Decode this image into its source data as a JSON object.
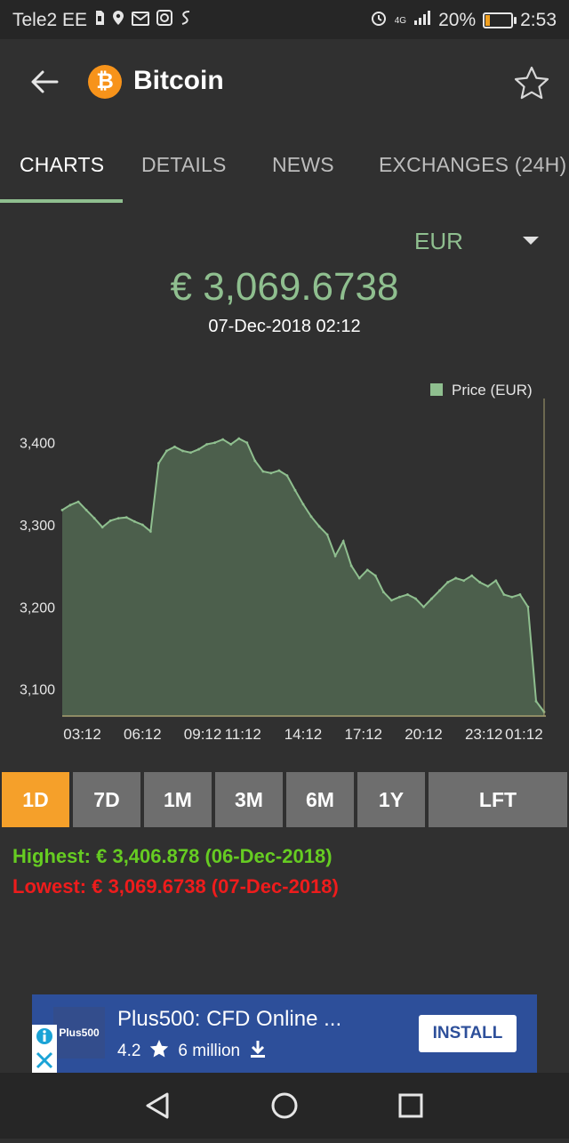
{
  "status_bar": {
    "carrier": "Tele2 EE",
    "network": "4G",
    "battery": "20%",
    "battery_level": 0.2,
    "time": "2:53"
  },
  "app_bar": {
    "title": "Bitcoin",
    "coin_symbol": "₿"
  },
  "tabs": [
    {
      "label": "CHARTS",
      "active": true
    },
    {
      "label": "DETAILS",
      "active": false
    },
    {
      "label": "NEWS",
      "active": false
    },
    {
      "label": "EXCHANGES (24H)",
      "active": false
    }
  ],
  "currency_select": {
    "value": "EUR"
  },
  "price": {
    "value": "€ 3,069.6738",
    "date": "07-Dec-2018 02:12"
  },
  "chart_data": {
    "type": "area",
    "legend": "Price (EUR)",
    "legend_position": "top-right",
    "x_ticks": [
      "03:12",
      "06:12",
      "09:12",
      "11:12",
      "14:12",
      "17:12",
      "20:12",
      "23:12",
      "01:12"
    ],
    "y_ticks": [
      "3,400",
      "3,300",
      "3,200",
      "3,100"
    ],
    "ylim": [
      3067,
      3430
    ],
    "grid": false,
    "series": [
      {
        "name": "Price (EUR)",
        "color": "#8fbf8f",
        "x": [
          "02:12",
          "02:36",
          "03:00",
          "03:24",
          "03:48",
          "04:12",
          "04:36",
          "05:00",
          "05:24",
          "05:48",
          "06:12",
          "06:36",
          "07:00",
          "07:24",
          "07:48",
          "08:12",
          "08:36",
          "09:00",
          "09:24",
          "09:48",
          "10:12",
          "10:36",
          "11:00",
          "11:24",
          "11:48",
          "12:12",
          "12:36",
          "13:00",
          "13:24",
          "13:48",
          "14:12",
          "14:36",
          "15:00",
          "15:24",
          "15:48",
          "16:12",
          "16:36",
          "17:00",
          "17:24",
          "17:48",
          "18:12",
          "18:36",
          "19:00",
          "19:24",
          "19:48",
          "20:12",
          "20:36",
          "21:00",
          "21:24",
          "21:48",
          "22:12",
          "22:36",
          "23:00",
          "23:24",
          "23:48",
          "00:12",
          "00:36",
          "01:00",
          "01:24",
          "01:48",
          "02:12"
        ],
        "values": [
          3318,
          3324,
          3328,
          3318,
          3308,
          3297,
          3305,
          3308,
          3309,
          3304,
          3300,
          3292,
          3375,
          3390,
          3395,
          3390,
          3388,
          3392,
          3398,
          3400,
          3404,
          3398,
          3405,
          3400,
          3378,
          3365,
          3363,
          3366,
          3360,
          3342,
          3325,
          3310,
          3298,
          3288,
          3262,
          3280,
          3250,
          3235,
          3245,
          3238,
          3218,
          3208,
          3212,
          3215,
          3210,
          3200,
          3210,
          3220,
          3230,
          3235,
          3232,
          3238,
          3230,
          3225,
          3232,
          3215,
          3212,
          3215,
          3200,
          3085,
          3072
        ]
      }
    ]
  },
  "ranges": {
    "selected": "1D",
    "items": [
      {
        "label": "1D",
        "active": true
      },
      {
        "label": "7D",
        "active": false
      },
      {
        "label": "1M",
        "active": false
      },
      {
        "label": "3M",
        "active": false
      },
      {
        "label": "6M",
        "active": false
      },
      {
        "label": "1Y",
        "active": false
      },
      {
        "label": "LFT",
        "active": false
      }
    ]
  },
  "stats": {
    "highest": "Highest: € 3,406.878 (06-Dec-2018)",
    "lowest": "Lowest: € 3,069.6738 (07-Dec-2018)"
  },
  "ad": {
    "logo": "Plus500",
    "title": "Plus500: CFD Online ...",
    "rating": "4.2",
    "installs": "6 million",
    "install_label": "INSTALL"
  },
  "colors": {
    "accent": "#8fbf8f",
    "selected_range": "#f5a02a",
    "highest": "#66cc22",
    "lowest": "#ee1c1c",
    "ad_background": "#2d4f9a"
  }
}
